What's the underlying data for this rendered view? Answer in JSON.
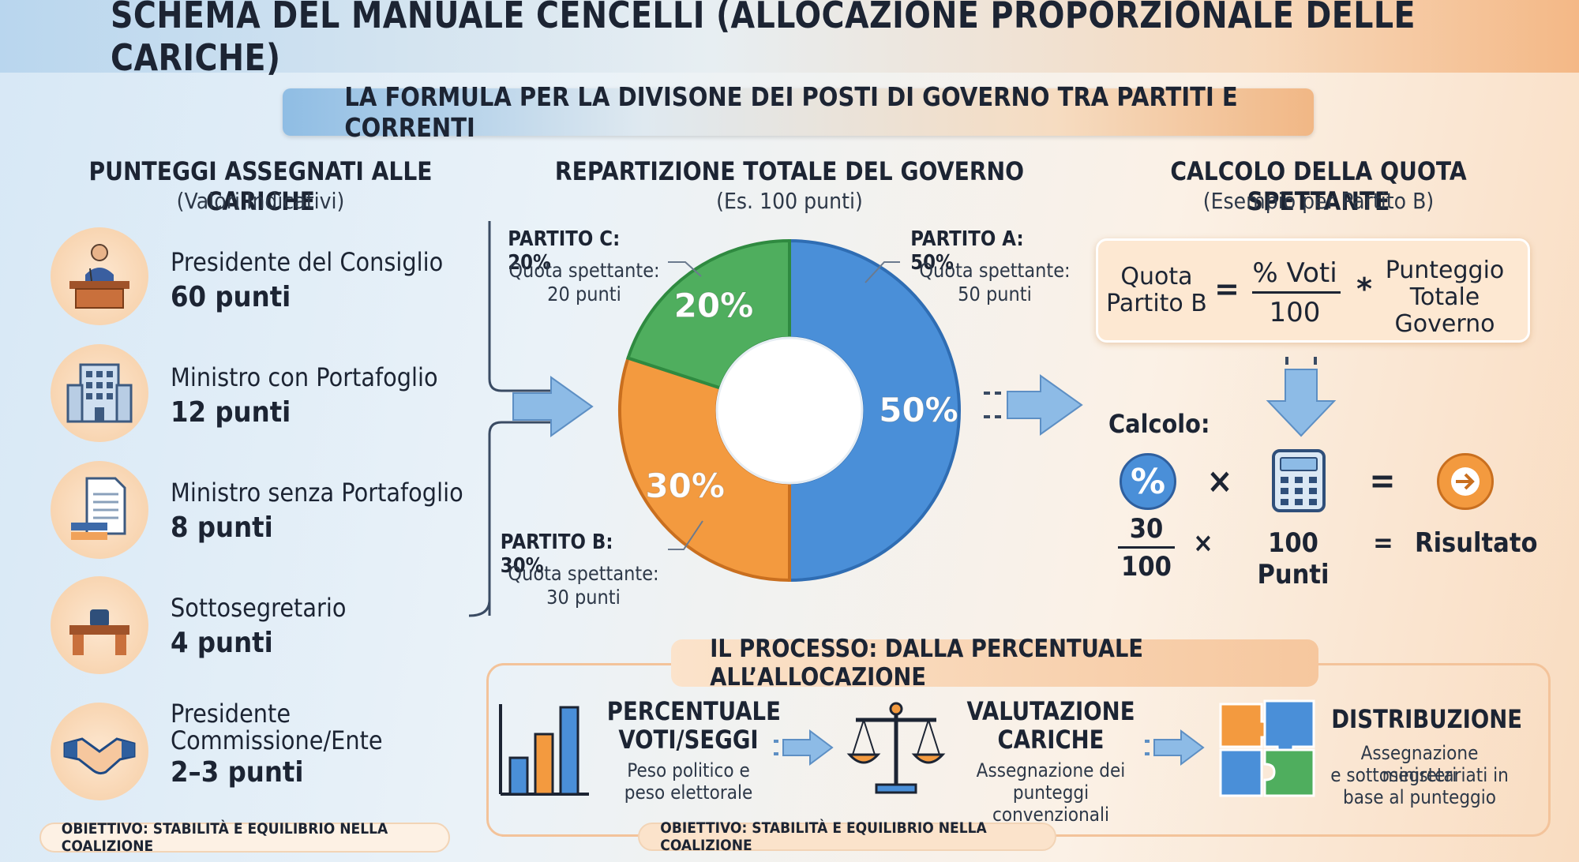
{
  "header": {
    "title": "SCHEMA DEL MANUALE CENCELLI (ALLOCAZIONE PROPORZIONALE DELLE CARICHE)",
    "subtitle": "LA FORMULA PER LA DIVISONE DEI POSTI DI GOVERNO TRA PARTITI E CORRENTI"
  },
  "left": {
    "title": "PUNTEGGI ASSEGNATI ALLE CARICHE",
    "subtitle": "(Valori Indicativi)",
    "roles": [
      {
        "name": "Presidente del Consiglio",
        "points": "60 punti",
        "icon": "podium-speaker-icon"
      },
      {
        "name": "Ministro con Portafoglio",
        "points": "12 punti",
        "icon": "office-building-icon"
      },
      {
        "name": "Ministro senza Portafoglio",
        "points": "8 punti",
        "icon": "document-icon"
      },
      {
        "name": "Sottosegretario",
        "points": "4 punti",
        "icon": "desk-icon"
      },
      {
        "name_line1": "Presidente",
        "name_line2": "Commissione/Ente",
        "points": "2–3 punti",
        "icon": "handshake-icon"
      }
    ],
    "goal": "OBIETTIVO: STABILITÀ E EQUILIBRIO NELLA COALIZIONE"
  },
  "center": {
    "title": "REPARTIZIONE TOTALE DEL GOVERNO",
    "subtitle": "(Es. 100 punti)",
    "parties": [
      {
        "label": "PARTITO A: 50%",
        "quota_label": "Quota spettante:",
        "quota_value": "50 punti"
      },
      {
        "label": "PARTITO B: 30%",
        "quota_label": "Quota spettante:",
        "quota_value": "30 punti"
      },
      {
        "label": "PARTITO C: 20%",
        "quota_label": "Quota spettante:",
        "quota_value": "20 punti"
      }
    ]
  },
  "chart_data": {
    "type": "pie",
    "categories": [
      "Partito A",
      "Partito B",
      "Partito C"
    ],
    "values": [
      50,
      30,
      20
    ],
    "value_labels": [
      "50%",
      "30%",
      "20%"
    ],
    "colors": [
      "#4a8fd8",
      "#f39a3f",
      "#4fae5e"
    ],
    "title": "REPARTIZIONE TOTALE DEL GOVERNO"
  },
  "right": {
    "title": "CALCOLO DELLA QUOTA SPETTANTE",
    "subtitle": "(Esempio per Partito B)",
    "formula": {
      "lhs_line1": "Quota",
      "lhs_line2": "Partito B",
      "equals": "=",
      "numerator": "% Voti",
      "denominator": "100",
      "times": "*",
      "rhs_line1": "Punteggio",
      "rhs_line2": "Totale",
      "rhs_line3": "Governo"
    },
    "calc_label": "Calcolo:",
    "calc": {
      "times_symbol": "×",
      "equals_symbol": "=",
      "numerator": "30",
      "denominator": "100",
      "times_text": "×",
      "points": "100 Punti",
      "equals_text": "=",
      "result": "Risultato"
    }
  },
  "process": {
    "title": "IL PROCESSO: DALLA PERCENTUALE ALL’ALLOCAZIONE",
    "steps": [
      {
        "title_line1": "PERCENTUALE",
        "title_line2": "VOTI/SEGGI",
        "desc_line1": "Peso politico e",
        "desc_line2": "peso elettorale",
        "icon": "bar-chart-icon"
      },
      {
        "title_line1": "VALUTAZIONE",
        "title_line2": "CARICHE",
        "desc_line1": "Assegnazione dei",
        "desc_line2": "punteggi convenzionali",
        "icon": "scales-icon"
      },
      {
        "title_line1": "DISTRIBUZIONE",
        "desc_line1": "Assegnazione ministeri",
        "desc_line2": "e sottosegretariati in",
        "desc_line3": "base al punteggio",
        "icon": "puzzle-icon"
      }
    ],
    "goal": "OBIETTIVO: STABILITÀ E EQUILIBRIO NELLA COALIZIONE"
  }
}
